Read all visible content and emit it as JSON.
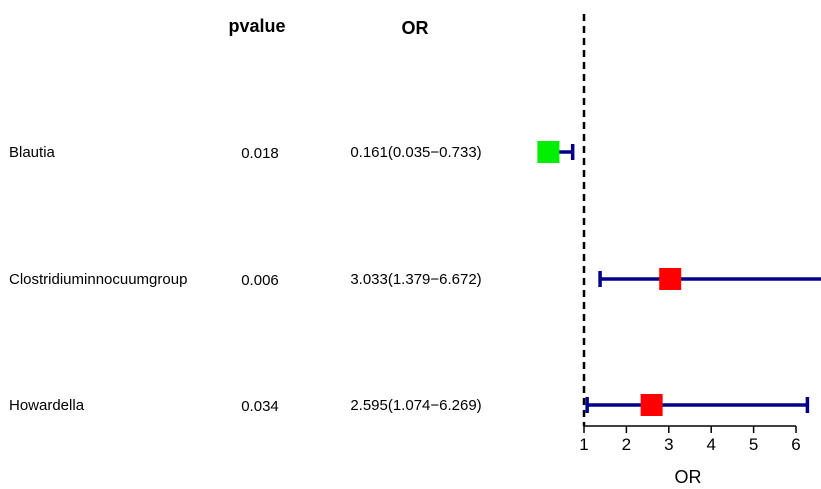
{
  "chart_data": {
    "type": "forest",
    "headers": {
      "pvalue": "pvalue",
      "or": "OR"
    },
    "rows": [
      {
        "label": "Blautia",
        "pvalue": "0.018",
        "or_text": "0.161(0.035−0.733)",
        "or": 0.161,
        "lower": 0.035,
        "upper": 0.733,
        "color": "#00ee00"
      },
      {
        "label": "Clostridiuminnocuumgroup",
        "pvalue": "0.006",
        "or_text": "3.033(1.379−6.672)",
        "or": 3.033,
        "lower": 1.379,
        "upper": 6.672,
        "color": "#ff0000"
      },
      {
        "label": "Howardella",
        "pvalue": "0.034",
        "or_text": "2.595(1.074−6.269)",
        "or": 2.595,
        "lower": 1.074,
        "upper": 6.269,
        "color": "#ff0000"
      }
    ],
    "xlabel": "OR",
    "xticks": [
      "1",
      "2",
      "3",
      "4",
      "5",
      "6"
    ],
    "reference_line": 1,
    "ci_color": "#00008b"
  }
}
